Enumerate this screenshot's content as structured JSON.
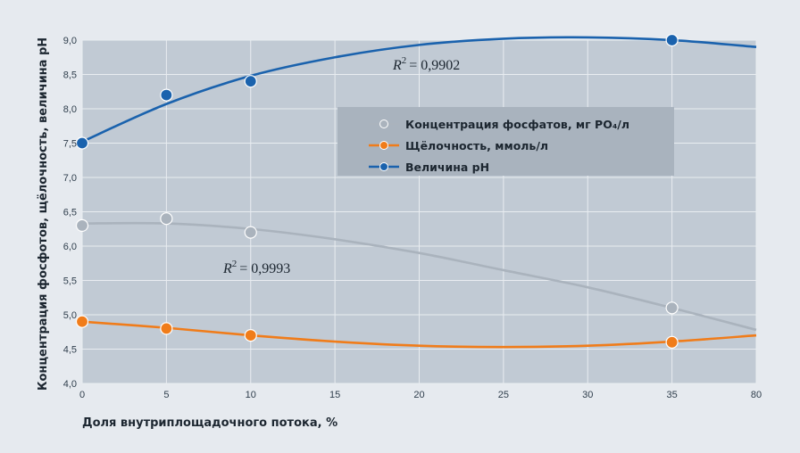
{
  "chart_data": {
    "type": "line",
    "xlabel": "Доля внутриплощадочного потока, %",
    "ylabel": "Концентрация фосфотов, щёлочность, величина рН",
    "x_ticks": [
      "0",
      "5",
      "10",
      "15",
      "20",
      "25",
      "30",
      "35",
      "80"
    ],
    "y_ticks": [
      "4,0",
      "4,5",
      "5,0",
      "5,5",
      "6,0",
      "6,5",
      "7,0",
      "7,5",
      "8,0",
      "8,5",
      "9,0"
    ],
    "ylim": [
      4.0,
      9.0
    ],
    "grid": true,
    "legend_position": "center-right",
    "series": [
      {
        "name": "Концентрация фосфатов, мг PO₄/л",
        "color": "#aab3bd",
        "points": [
          {
            "x": "0",
            "y": 6.3
          },
          {
            "x": "5",
            "y": 6.4
          },
          {
            "x": "10",
            "y": 6.2
          },
          {
            "x": "35",
            "y": 5.1
          }
        ],
        "trend": [
          6.33,
          6.33,
          6.25,
          6.1,
          5.9,
          5.65,
          5.4,
          5.1,
          4.78
        ],
        "r2_label": "= 0,9993"
      },
      {
        "name": "Щёлочность, ммоль/л",
        "color": "#f07c1a",
        "points": [
          {
            "x": "0",
            "y": 4.9
          },
          {
            "x": "5",
            "y": 4.8
          },
          {
            "x": "10",
            "y": 4.7
          },
          {
            "x": "35",
            "y": 4.6
          }
        ],
        "trend": [
          4.9,
          4.81,
          4.7,
          4.61,
          4.55,
          4.53,
          4.55,
          4.61,
          4.7
        ]
      },
      {
        "name": "Величина рН",
        "color": "#1a62ad",
        "points": [
          {
            "x": "0",
            "y": 7.5
          },
          {
            "x": "5",
            "y": 8.2
          },
          {
            "x": "10",
            "y": 8.4
          },
          {
            "x": "35",
            "y": 9.0
          }
        ],
        "trend": [
          7.52,
          8.07,
          8.48,
          8.75,
          8.93,
          9.02,
          9.04,
          9.0,
          8.9
        ],
        "r2_label": "= 0,9902"
      }
    ]
  },
  "r2_symbol": "R",
  "r2_exponent": "2"
}
